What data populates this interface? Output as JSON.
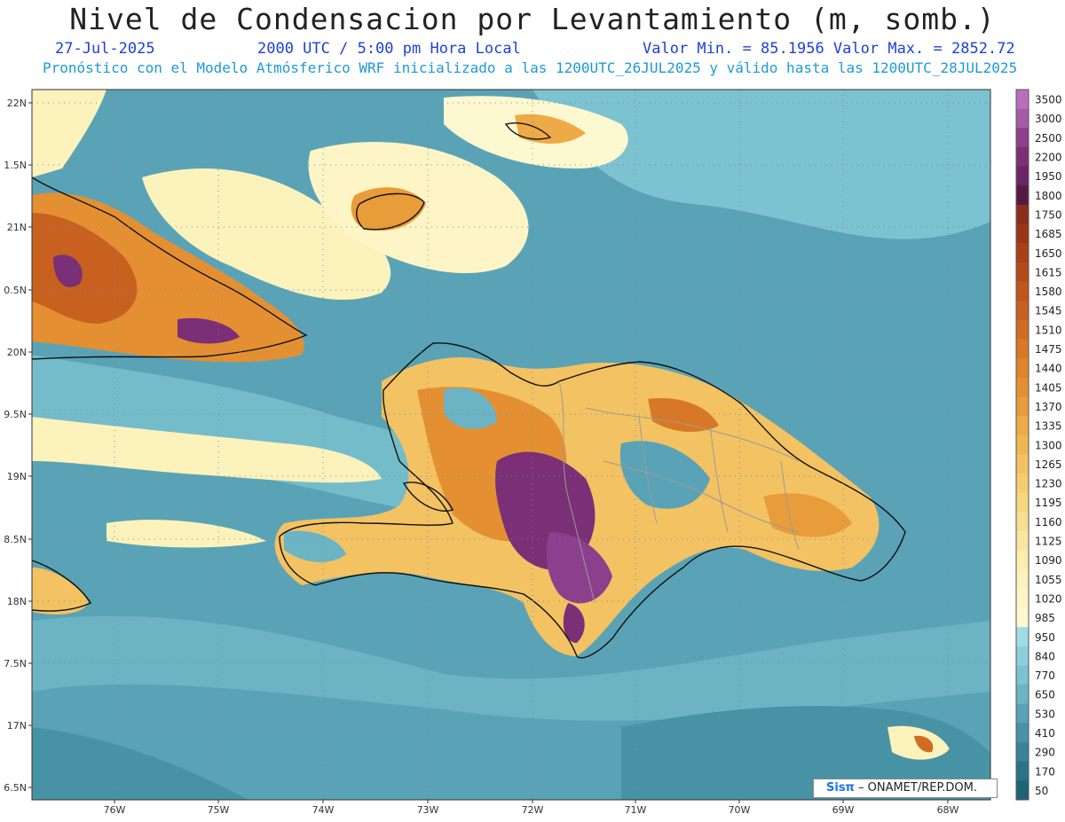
{
  "title": "Nivel de Condensacion por Levantamiento (m, somb.)",
  "date": "27-Jul-2025",
  "time": "2000 UTC / 5:00 pm Hora Local",
  "minmax": "Valor Min. = 85.1956  Valor Max. = 2852.72",
  "model_line": "Pronóstico con el Modelo Atmósferico WRF inicializado a las 1200UTC_26JUL2025 y válido hasta las  1200UTC_28JUL2025",
  "lat_labels": [
    "22N",
    "1.5N",
    "21N",
    "0.5N",
    "20N",
    "9.5N",
    "19N",
    "8.5N",
    "18N",
    "7.5N",
    "17N",
    "6.5N"
  ],
  "lon_labels": [
    "76W",
    "75W",
    "74W",
    "73W",
    "72W",
    "71W",
    "70W",
    "69W",
    "68W"
  ],
  "colorbar": {
    "levels": [
      "3500",
      "3000",
      "2500",
      "2200",
      "1950",
      "1800",
      "1750",
      "1685",
      "1650",
      "1615",
      "1580",
      "1545",
      "1510",
      "1475",
      "1440",
      "1405",
      "1370",
      "1335",
      "1300",
      "1265",
      "1230",
      "1195",
      "1160",
      "1125",
      "1090",
      "1055",
      "1020",
      "985",
      "950",
      "840",
      "770",
      "650",
      "530",
      "410",
      "290",
      "170",
      "50"
    ],
    "colors": [
      "#b96fbd",
      "#a45aa6",
      "#8c3f8c",
      "#7a2f77",
      "#6a2467",
      "#551a44",
      "#8a2d1a",
      "#9a3518",
      "#a84018",
      "#b44a1a",
      "#bf551c",
      "#c8601f",
      "#d06c22",
      "#d87826",
      "#df842c",
      "#e49032",
      "#e99c3a",
      "#edaa46",
      "#f0b652",
      "#f3c262",
      "#f5cc70",
      "#f7d680",
      "#f8de90",
      "#f9e6a0",
      "#fbeeb0",
      "#fcf2bc",
      "#fdf5c6",
      "#fef8d0",
      "#9edde8",
      "#8dd0dc",
      "#7cc2d0",
      "#6cb3c4",
      "#5aa3b6",
      "#4892a6",
      "#3a8296",
      "#2c7286",
      "#1f6376"
    ]
  },
  "credit": {
    "brand": "Sisπ",
    "org": "– ONAMET/REP.DOM."
  }
}
